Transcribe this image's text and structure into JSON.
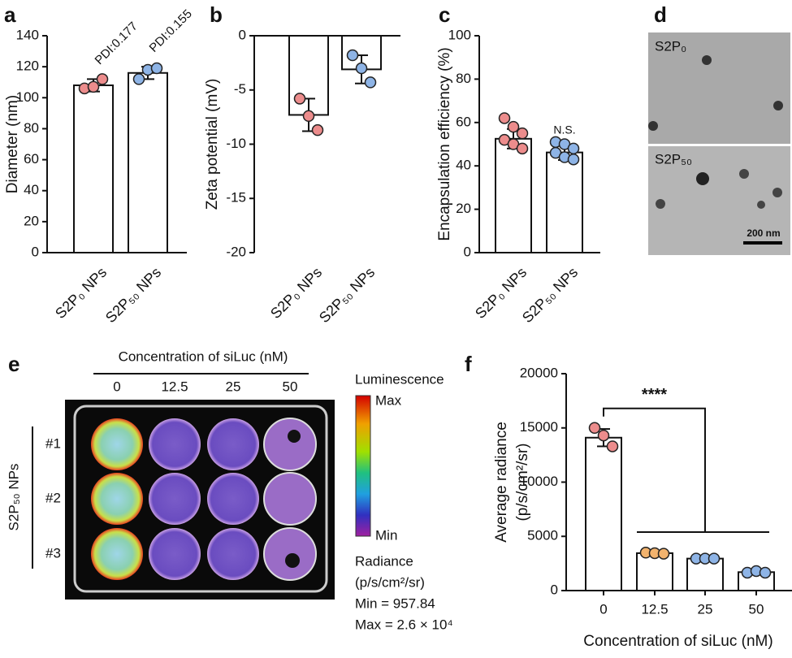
{
  "chart_data": [
    {
      "type": "bar",
      "panel": "a",
      "ylabel": "Diameter (nm)",
      "categories": [
        "S2P₀ NPs",
        "S2P₅₀ NPs"
      ],
      "values": [
        108,
        116
      ],
      "errors": [
        4,
        4
      ],
      "points": [
        [
          106,
          107,
          112
        ],
        [
          112,
          118,
          119
        ]
      ],
      "colors": [
        "#ec8c8c",
        "#8eb4e6"
      ],
      "annotations": [
        "PDI:0.177",
        "PDI:0.155"
      ],
      "ylim": [
        0,
        140
      ],
      "yticks": [
        0,
        20,
        40,
        60,
        80,
        100,
        120,
        140
      ]
    },
    {
      "type": "bar",
      "panel": "b",
      "ylabel": "Zeta potential (mV)",
      "categories": [
        "S2P₀ NPs",
        "S2P₅₀ NPs"
      ],
      "values": [
        -7.3,
        -3.1
      ],
      "errors": [
        1.5,
        1.3
      ],
      "points": [
        [
          -5.8,
          -7.4,
          -8.7
        ],
        [
          -1.8,
          -3.0,
          -4.3
        ]
      ],
      "colors": [
        "#ec8c8c",
        "#8eb4e6"
      ],
      "ylim": [
        -20,
        0
      ],
      "yticks": [
        -20,
        -15,
        -10,
        -5,
        0
      ]
    },
    {
      "type": "bar",
      "panel": "c",
      "ylabel": "Encapsulation efficiency (%)",
      "categories": [
        "S2P₀ NPs",
        "S2P₅₀ NPs"
      ],
      "values": [
        52.5,
        46.2
      ],
      "errors": [
        4.5,
        3.5
      ],
      "points": [
        [
          62,
          58,
          55,
          52,
          50,
          48
        ],
        [
          51,
          50,
          48,
          46,
          44,
          43
        ]
      ],
      "colors": [
        "#ec8c8c",
        "#8eb4e6"
      ],
      "annotations": [
        null,
        "N.S."
      ],
      "ylim": [
        0,
        100
      ],
      "yticks": [
        0,
        20,
        40,
        60,
        80,
        100
      ]
    },
    {
      "type": "bar",
      "panel": "f",
      "ylabel": [
        "Average radiance",
        "(p/s/cm²/sr)"
      ],
      "xlabel": "Concentration of siLuc (nM)",
      "categories": [
        "0",
        "12.5",
        "25",
        "50"
      ],
      "values": [
        14100,
        3450,
        2950,
        1700
      ],
      "errors": [
        800,
        150,
        100,
        150
      ],
      "points": [
        [
          15000,
          14300,
          13300
        ],
        [
          3500,
          3450,
          3400
        ],
        [
          2950,
          2950,
          2950
        ],
        [
          1650,
          1800,
          1650
        ]
      ],
      "colors": [
        "#ec8c8c",
        "#f2b36e",
        "#8eb4e6",
        "#8eb4e6"
      ],
      "annotation": "****",
      "ylim": [
        0,
        20000
      ],
      "yticks": [
        0,
        5000,
        10000,
        15000,
        20000
      ]
    }
  ],
  "image_panels": [
    {
      "panel": "d",
      "labels": [
        "S2P₀",
        "S2P₅₀"
      ],
      "scale_bar": "200 nm"
    },
    {
      "panel": "e",
      "title": "Concentration of siLuc (nM)",
      "columns": [
        "0",
        "12.5",
        "25",
        "50"
      ],
      "rows": [
        "#1",
        "#2",
        "#3"
      ],
      "row_title": "S2P₅₀ NPs",
      "legend": {
        "title": "Luminescence",
        "max": "Max",
        "min": "Min",
        "unit_title": "Radiance",
        "unit": "(p/s/cm²/sr)",
        "min_value": "Min = 957.84",
        "max_value": "Max = 2.6 × 10⁴"
      }
    }
  ]
}
